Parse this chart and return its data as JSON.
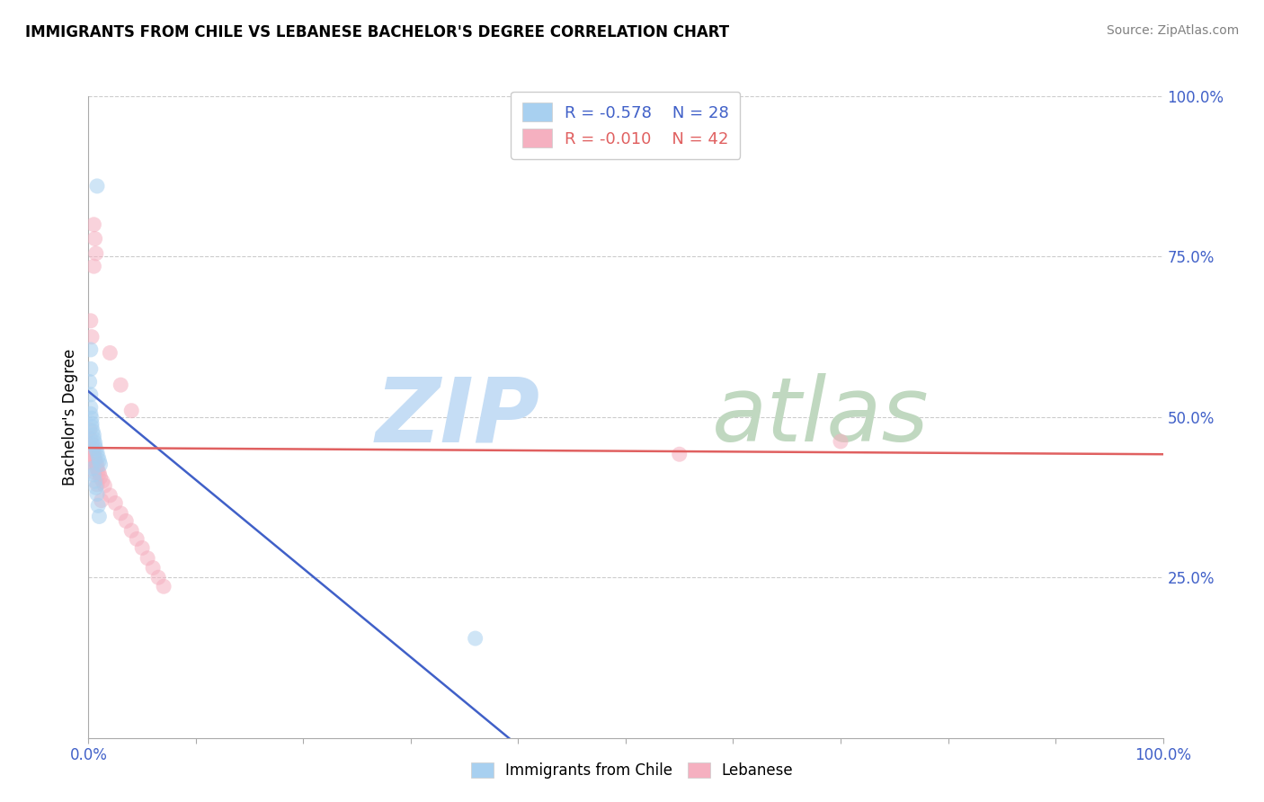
{
  "title": "IMMIGRANTS FROM CHILE VS LEBANESE BACHELOR'S DEGREE CORRELATION CHART",
  "source": "Source: ZipAtlas.com",
  "ylabel": "Bachelor's Degree",
  "legend_r1": "R = -0.578",
  "legend_n1": "N = 28",
  "legend_r2": "R = -0.010",
  "legend_n2": "N = 42",
  "color_blue": "#a8d0f0",
  "color_pink": "#f5b0c0",
  "line_blue": "#4060c8",
  "line_pink": "#e06060",
  "background_color": "#ffffff",
  "grid_color": "#cccccc",
  "blue_scatter": [
    [
      0.008,
      0.86
    ],
    [
      0.002,
      0.605
    ],
    [
      0.002,
      0.575
    ],
    [
      0.001,
      0.555
    ],
    [
      0.002,
      0.535
    ],
    [
      0.002,
      0.515
    ],
    [
      0.002,
      0.505
    ],
    [
      0.003,
      0.498
    ],
    [
      0.003,
      0.49
    ],
    [
      0.003,
      0.485
    ],
    [
      0.004,
      0.478
    ],
    [
      0.005,
      0.472
    ],
    [
      0.005,
      0.466
    ],
    [
      0.006,
      0.46
    ],
    [
      0.006,
      0.455
    ],
    [
      0.007,
      0.45
    ],
    [
      0.008,
      0.445
    ],
    [
      0.009,
      0.438
    ],
    [
      0.01,
      0.432
    ],
    [
      0.011,
      0.426
    ],
    [
      0.004,
      0.42
    ],
    [
      0.005,
      0.41
    ],
    [
      0.006,
      0.4
    ],
    [
      0.007,
      0.39
    ],
    [
      0.008,
      0.38
    ],
    [
      0.009,
      0.362
    ],
    [
      0.01,
      0.345
    ],
    [
      0.36,
      0.155
    ]
  ],
  "pink_scatter": [
    [
      0.005,
      0.8
    ],
    [
      0.006,
      0.778
    ],
    [
      0.007,
      0.755
    ],
    [
      0.005,
      0.735
    ],
    [
      0.002,
      0.65
    ],
    [
      0.003,
      0.625
    ],
    [
      0.02,
      0.6
    ],
    [
      0.03,
      0.55
    ],
    [
      0.04,
      0.51
    ],
    [
      0.001,
      0.48
    ],
    [
      0.002,
      0.466
    ],
    [
      0.003,
      0.458
    ],
    [
      0.004,
      0.45
    ],
    [
      0.005,
      0.445
    ],
    [
      0.005,
      0.44
    ],
    [
      0.006,
      0.435
    ],
    [
      0.006,
      0.432
    ],
    [
      0.007,
      0.428
    ],
    [
      0.008,
      0.425
    ],
    [
      0.008,
      0.42
    ],
    [
      0.009,
      0.416
    ],
    [
      0.01,
      0.412
    ],
    [
      0.011,
      0.406
    ],
    [
      0.013,
      0.4
    ],
    [
      0.015,
      0.393
    ],
    [
      0.02,
      0.378
    ],
    [
      0.025,
      0.366
    ],
    [
      0.03,
      0.35
    ],
    [
      0.035,
      0.338
    ],
    [
      0.04,
      0.323
    ],
    [
      0.045,
      0.31
    ],
    [
      0.05,
      0.296
    ],
    [
      0.055,
      0.28
    ],
    [
      0.06,
      0.265
    ],
    [
      0.065,
      0.25
    ],
    [
      0.07,
      0.236
    ],
    [
      0.003,
      0.43
    ],
    [
      0.004,
      0.415
    ],
    [
      0.008,
      0.395
    ],
    [
      0.012,
      0.37
    ],
    [
      0.7,
      0.462
    ],
    [
      0.55,
      0.442
    ]
  ],
  "blue_line_x": [
    0.0,
    0.42
  ],
  "blue_line_y": [
    0.54,
    -0.04
  ],
  "pink_line_x": [
    0.0,
    1.0
  ],
  "pink_line_y": [
    0.452,
    0.442
  ],
  "xlim": [
    0.0,
    1.0
  ],
  "ylim": [
    0.0,
    1.0
  ],
  "xticks": [
    0.0,
    0.1,
    0.2,
    0.3,
    0.4,
    0.5,
    0.6,
    0.7,
    0.8,
    0.9,
    1.0
  ],
  "yticks_right": [
    0.25,
    0.5,
    0.75,
    1.0
  ],
  "ytick_labels_right": [
    "25.0%",
    "50.0%",
    "75.0%",
    "100.0%"
  ]
}
